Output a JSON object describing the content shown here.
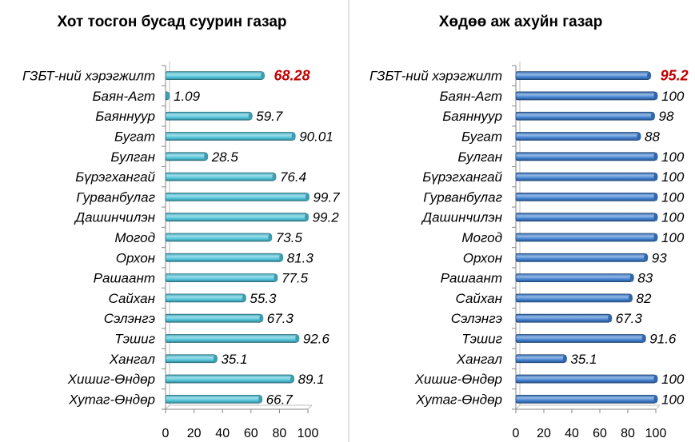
{
  "colors": {
    "left_bar": "#4fc3d9",
    "right_bar": "#3f7fd0",
    "highlight_text": "#c00000"
  },
  "chart_data": [
    {
      "type": "bar",
      "orientation": "horizontal",
      "title": "Хот тосгон бусад суурин газар",
      "categories": [
        "ГЗБТ-ний хэрэгжилт",
        "Баян-Агт",
        "Баяннуур",
        "Бугат",
        "Булган",
        "Бүрэгхангай",
        "Гурванбулаг",
        "Дашинчилэн",
        "Могод",
        "Орхон",
        "Рашаант",
        "Сайхан",
        "Сэлэнгэ",
        "Тэшиг",
        "Хангал",
        "Хишиг-Өндөр",
        "Хутаг-Өндөр"
      ],
      "values": [
        68.28,
        1.09,
        59.7,
        90.01,
        28.5,
        76.4,
        99.7,
        99.2,
        73.5,
        81.3,
        77.5,
        55.3,
        67.3,
        92.6,
        35.1,
        89.1,
        66.7
      ],
      "value_labels": [
        "68.28",
        "1.09",
        "59.7",
        "90.01",
        "28.5",
        "76.4",
        "99.7",
        "99.2",
        "73.5",
        "81.3",
        "77.5",
        "55.3",
        "67.3",
        "92.6",
        "35.1",
        "89.1",
        "66.7"
      ],
      "highlight_index": 0,
      "xlim": [
        0,
        100
      ],
      "xticks": [
        "0",
        "20",
        "40",
        "60",
        "80",
        "100"
      ],
      "grid": false
    },
    {
      "type": "bar",
      "orientation": "horizontal",
      "title": "Хөдөө аж ахуйн газар",
      "categories": [
        "ГЗБТ-ний хэрэгжилт",
        "Баян-Агт",
        "Баяннуур",
        "Бугат",
        "Булган",
        "Бүрэгхангай",
        "Гурванбулаг",
        "Дашинчилэн",
        "Могод",
        "Орхон",
        "Рашаант",
        "Сайхан",
        "Сэлэнгэ",
        "Тэшиг",
        "Хангал",
        "Хишиг-Өндөр",
        "Хутаг-Өндөр"
      ],
      "values": [
        95.2,
        100,
        98,
        88,
        100,
        100,
        100,
        100,
        100,
        93,
        83,
        82,
        67.3,
        91.6,
        35.1,
        100,
        100
      ],
      "value_labels": [
        "95.2",
        "100",
        "98",
        "88",
        "100",
        "100",
        "100",
        "100",
        "100",
        "93",
        "83",
        "82",
        "67.3",
        "91.6",
        "35.1",
        "100",
        "100"
      ],
      "highlight_index": 0,
      "xlim": [
        0,
        100
      ],
      "xticks": [
        "0",
        "20",
        "40",
        "60",
        "80",
        "100"
      ],
      "grid": false
    }
  ]
}
